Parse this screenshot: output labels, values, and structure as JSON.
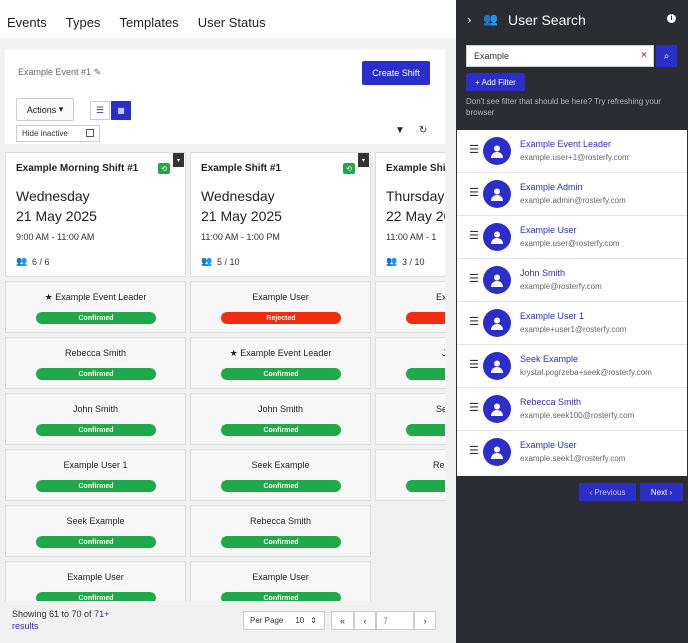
{
  "nav": {
    "events": "Events",
    "types": "Types",
    "templates": "Templates",
    "user_status": "User Status"
  },
  "header": {
    "event_title": "Example Event #1",
    "create_shift": "Create Shift",
    "actions": "Actions",
    "hide_inactive": "Hide inactive"
  },
  "shifts": [
    {
      "title": "Example Morning Shift #1",
      "day": "Wednesday",
      "date": "21 May 2025",
      "time": "9:00 AM - 11:00 AM",
      "count": "6 / 6"
    },
    {
      "title": "Example Shift #1",
      "day": "Wednesday",
      "date": "21 May 2025",
      "time": "11:00 AM - 1:00 PM",
      "count": "5 / 10"
    },
    {
      "title": "Example Shift",
      "day": "Thursday",
      "date": "22 May 20",
      "time": "11:00 AM - 1",
      "count": "3 / 10"
    }
  ],
  "col1": [
    {
      "name": "Example Event Leader",
      "status": "Confirmed"
    },
    {
      "name": "Rebecca Smith",
      "status": "Confirmed"
    },
    {
      "name": "John Smith",
      "status": "Confirmed"
    },
    {
      "name": "Example User 1",
      "status": "Confirmed"
    },
    {
      "name": "Seek Example",
      "status": "Confirmed"
    },
    {
      "name": "Example User",
      "status": "Confirmed"
    }
  ],
  "col2": [
    {
      "name": "Example User",
      "status": "Rejected"
    },
    {
      "name": "Example Event Leader",
      "status": "Confirmed"
    },
    {
      "name": "John Smith",
      "status": "Confirmed"
    },
    {
      "name": "Seek Example",
      "status": "Confirmed"
    },
    {
      "name": "Rebecca Smith",
      "status": "Confirmed"
    },
    {
      "name": "Example User",
      "status": "Confirmed"
    }
  ],
  "col3": [
    {
      "name": "Ex"
    },
    {
      "name": "J"
    },
    {
      "name": "Se"
    },
    {
      "name": "Rel"
    }
  ],
  "footer": {
    "showing": "Showing 61 to 70 of",
    "total_link": "71+",
    "results": "results",
    "per_page_label": "Per Page",
    "per_page_value": "10",
    "page": "7"
  },
  "panel": {
    "title": "User Search",
    "search_value": "Example",
    "add_filter": "+ Add Filter",
    "hint": "Don't see filter that should be here? Try refreshing your browser",
    "users": [
      {
        "name": "Example Event Leader",
        "email": "example.user+1@rosterfy.com"
      },
      {
        "name": "Example Admin",
        "email": "example.admin@rosterfy.com"
      },
      {
        "name": "Example User",
        "email": "example.user@rosterfy.com"
      },
      {
        "name": "John Smith",
        "email": "example@rosterfy.com"
      },
      {
        "name": "Example User 1",
        "email": "example+user1@rosterfy.com"
      },
      {
        "name": "Seek Example",
        "email": "krystal.pogrzeba+seek@rosterfy.com"
      },
      {
        "name": "Rebecca Smith",
        "email": "example.seek100@rosterfy.com"
      },
      {
        "name": "Example User",
        "email": "example.seek1@rosterfy.com"
      }
    ],
    "previous": "Previous",
    "next": "Next"
  },
  "colors": {
    "accent": "#2b2ec9",
    "confirmed": "#21a84a",
    "rejected": "#f22d0f",
    "panel_bg": "#2b2d33"
  }
}
